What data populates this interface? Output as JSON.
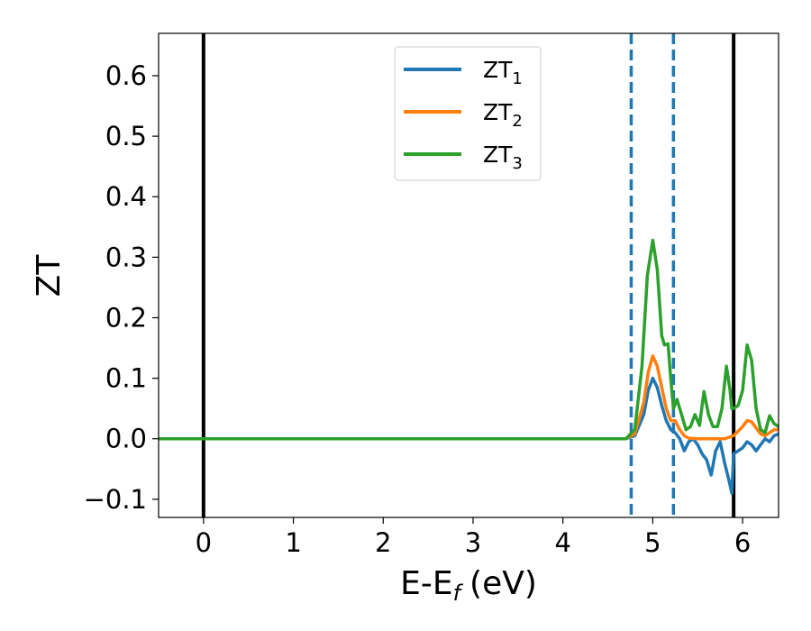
{
  "chart_data": {
    "type": "line",
    "xlabel": "E-E",
    "xlabel_sub": "f",
    "xlabel_unit": "(eV)",
    "ylabel": "ZT",
    "xlim": [
      -0.5,
      6.4
    ],
    "ylim": [
      -0.13,
      0.67
    ],
    "xticks": [
      {
        "value": 0,
        "label": "0"
      },
      {
        "value": 1,
        "label": "1"
      },
      {
        "value": 2,
        "label": "2"
      },
      {
        "value": 3,
        "label": "3"
      },
      {
        "value": 4,
        "label": "4"
      },
      {
        "value": 5,
        "label": "5"
      },
      {
        "value": 6,
        "label": "6"
      }
    ],
    "yticks": [
      {
        "value": -0.1,
        "label": "−0.1"
      },
      {
        "value": 0.0,
        "label": "0.0"
      },
      {
        "value": 0.1,
        "label": "0.1"
      },
      {
        "value": 0.2,
        "label": "0.2"
      },
      {
        "value": 0.3,
        "label": "0.3"
      },
      {
        "value": 0.4,
        "label": "0.4"
      },
      {
        "value": 0.5,
        "label": "0.5"
      },
      {
        "value": 0.6,
        "label": "0.6"
      }
    ],
    "grid": false,
    "legend_position": "top-center",
    "vlines": [
      {
        "x": 0.0,
        "color": "#000000",
        "style": "solid"
      },
      {
        "x": 5.9,
        "color": "#000000",
        "style": "solid"
      },
      {
        "x": 4.76,
        "color": "#1f77b4",
        "style": "dashed"
      },
      {
        "x": 5.23,
        "color": "#1f77b4",
        "style": "dashed"
      }
    ],
    "series": [
      {
        "name": "ZT",
        "name_sub": "1",
        "color": "#1f77b4",
        "x": [
          -0.5,
          4.0,
          4.7,
          4.8,
          4.9,
          4.95,
          5.0,
          5.05,
          5.1,
          5.15,
          5.2,
          5.25,
          5.3,
          5.35,
          5.4,
          5.45,
          5.5,
          5.55,
          5.6,
          5.65,
          5.7,
          5.75,
          5.8,
          5.85,
          5.88,
          5.9,
          5.95,
          6.0,
          6.05,
          6.1,
          6.15,
          6.2,
          6.25,
          6.3,
          6.35,
          6.4
        ],
        "y": [
          0.0,
          0.0,
          0.0,
          0.005,
          0.04,
          0.08,
          0.1,
          0.085,
          0.055,
          0.03,
          0.015,
          0.01,
          0.0,
          -0.02,
          -0.005,
          0.0,
          -0.01,
          -0.025,
          -0.035,
          -0.06,
          -0.02,
          -0.005,
          -0.04,
          -0.07,
          -0.09,
          -0.025,
          -0.02,
          -0.015,
          -0.005,
          -0.01,
          -0.02,
          -0.01,
          0.0,
          -0.005,
          0.005,
          0.008
        ]
      },
      {
        "name": "ZT",
        "name_sub": "2",
        "color": "#ff7f0e",
        "x": [
          -0.5,
          4.0,
          4.7,
          4.8,
          4.9,
          4.95,
          5.0,
          5.05,
          5.1,
          5.15,
          5.2,
          5.25,
          5.3,
          5.35,
          5.4,
          5.5,
          5.6,
          5.7,
          5.8,
          5.9,
          6.0,
          6.05,
          6.1,
          6.15,
          6.2,
          6.25,
          6.3,
          6.35,
          6.4
        ],
        "y": [
          0.0,
          0.0,
          0.0,
          0.008,
          0.06,
          0.11,
          0.137,
          0.12,
          0.085,
          0.05,
          0.03,
          0.03,
          0.015,
          0.005,
          0.001,
          0.0,
          0.0,
          0.0,
          0.0,
          0.005,
          0.02,
          0.03,
          0.028,
          0.018,
          0.008,
          0.005,
          0.01,
          0.015,
          0.015
        ]
      },
      {
        "name": "ZT",
        "name_sub": "3",
        "color": "#2ca02c",
        "x": [
          -0.5,
          4.0,
          4.7,
          4.8,
          4.88,
          4.94,
          5.0,
          5.05,
          5.1,
          5.13,
          5.17,
          5.2,
          5.23,
          5.27,
          5.32,
          5.37,
          5.42,
          5.47,
          5.52,
          5.57,
          5.62,
          5.67,
          5.72,
          5.77,
          5.82,
          5.86,
          5.88,
          5.9,
          5.95,
          6.0,
          6.05,
          6.1,
          6.15,
          6.2,
          6.25,
          6.3,
          6.35,
          6.4
        ],
        "y": [
          0.0,
          0.0,
          0.0,
          0.015,
          0.12,
          0.27,
          0.328,
          0.28,
          0.17,
          0.155,
          0.157,
          0.1,
          0.05,
          0.065,
          0.04,
          0.015,
          0.02,
          0.04,
          0.022,
          0.078,
          0.04,
          0.02,
          0.02,
          0.05,
          0.12,
          0.08,
          0.05,
          0.05,
          0.055,
          0.08,
          0.155,
          0.13,
          0.05,
          0.015,
          0.01,
          0.038,
          0.025,
          0.02
        ]
      }
    ]
  }
}
